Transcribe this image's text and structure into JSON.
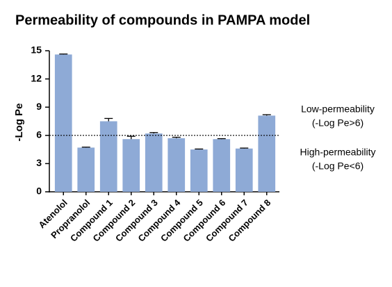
{
  "chart_data": {
    "type": "bar",
    "title": "Permeability of compounds in PAMPA model",
    "y_label": "-Log Pe",
    "categories": [
      "Atenolol",
      "Propranolol",
      "Compound 1",
      "Compound 2",
      "Compound 3",
      "Compound 4",
      "Compound 5",
      "Compound 6",
      "Compound 7",
      "Compound 8"
    ],
    "values": [
      14.6,
      4.7,
      7.5,
      5.6,
      6.2,
      5.7,
      4.5,
      5.6,
      4.6,
      8.1
    ],
    "errors": [
      0.05,
      0.05,
      0.3,
      0.3,
      0.1,
      0.1,
      0.05,
      0.05,
      0.05,
      0.1
    ],
    "color": "#8eaad6",
    "ylim": [
      0,
      15
    ],
    "yticks": [
      0,
      3,
      6,
      9,
      12,
      15
    ],
    "reference_line": 6,
    "annotations": [
      [
        "Low-permeability",
        "(-Log Pe>6)"
      ],
      [
        "High-permeability",
        "(-Log Pe<6)"
      ]
    ]
  }
}
